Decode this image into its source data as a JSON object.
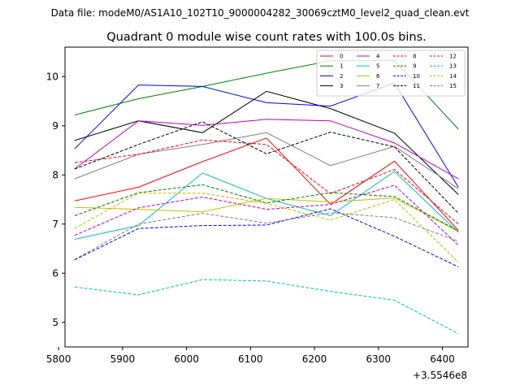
{
  "chart_data": {
    "type": "line",
    "suptitle": "Data file: modeM0/AS1A10_102T10_9000004282_30069cztM0_level2_quad_clean.evt",
    "title": "Quadrant 0 module wise count rates with 100.0s bins.",
    "xlabel": "",
    "ylabel": "",
    "x_offset_label": "+3.5546e8",
    "xlim": [
      5810,
      6440
    ],
    "ylim": [
      4.5,
      10.6
    ],
    "xticks": [
      5800,
      5900,
      6000,
      6100,
      6200,
      6300,
      6400
    ],
    "yticks": [
      5,
      6,
      7,
      8,
      9,
      10
    ],
    "x": [
      5825,
      5925,
      6025,
      6125,
      6225,
      6325,
      6425
    ],
    "legend_position": "top-right",
    "series": [
      {
        "name": "0",
        "color": "#ff0000",
        "dashed": false,
        "values": [
          7.47,
          7.75,
          8.27,
          8.75,
          7.4,
          8.28,
          6.87
        ]
      },
      {
        "name": "1",
        "color": "#008000",
        "dashed": false,
        "values": [
          9.22,
          9.55,
          9.8,
          10.07,
          10.32,
          10.33,
          8.93
        ]
      },
      {
        "name": "2",
        "color": "#0000ff",
        "dashed": false,
        "values": [
          8.53,
          9.83,
          9.8,
          9.47,
          9.4,
          9.87,
          7.75
        ]
      },
      {
        "name": "3",
        "color": "#000000",
        "dashed": false,
        "values": [
          8.7,
          9.1,
          8.86,
          9.7,
          9.35,
          8.85,
          7.6
        ]
      },
      {
        "name": "4",
        "color": "#bf00bf",
        "dashed": false,
        "values": [
          8.12,
          9.1,
          9.01,
          9.13,
          9.1,
          8.65,
          7.92
        ]
      },
      {
        "name": "5",
        "color": "#00bfbf",
        "dashed": false,
        "values": [
          6.69,
          6.97,
          8.04,
          7.52,
          7.17,
          8.07,
          6.83
        ]
      },
      {
        "name": "6",
        "color": "#bfbf00",
        "dashed": false,
        "values": [
          7.34,
          7.3,
          7.25,
          7.52,
          7.45,
          7.53,
          6.85
        ]
      },
      {
        "name": "7",
        "color": "#808080",
        "dashed": false,
        "values": [
          7.92,
          8.42,
          8.62,
          8.86,
          8.19,
          8.58,
          7.72
        ]
      },
      {
        "name": "8",
        "color": "#ff0000",
        "dashed": true,
        "values": [
          8.25,
          8.42,
          8.71,
          8.62,
          7.62,
          8.11,
          7.0
        ]
      },
      {
        "name": "9",
        "color": "#008000",
        "dashed": true,
        "values": [
          7.17,
          7.64,
          7.8,
          7.43,
          7.64,
          7.56,
          6.86
        ]
      },
      {
        "name": "10",
        "color": "#0000ff",
        "dashed": true,
        "values": [
          6.27,
          6.91,
          6.97,
          6.98,
          7.31,
          6.75,
          6.13
        ]
      },
      {
        "name": "11",
        "color": "#000000",
        "dashed": true,
        "values": [
          8.12,
          8.62,
          9.08,
          8.43,
          8.87,
          8.57,
          7.22
        ]
      },
      {
        "name": "12",
        "color": "#bf00bf",
        "dashed": true,
        "values": [
          6.77,
          7.33,
          7.55,
          7.3,
          7.4,
          7.79,
          6.57
        ]
      },
      {
        "name": "13",
        "color": "#00bfbf",
        "dashed": true,
        "values": [
          5.72,
          5.56,
          5.87,
          5.84,
          5.63,
          5.45,
          4.77
        ]
      },
      {
        "name": "14",
        "color": "#bfbf00",
        "dashed": true,
        "values": [
          6.91,
          7.63,
          7.63,
          7.42,
          7.08,
          7.5,
          6.22
        ]
      },
      {
        "name": "15",
        "color": "#808080",
        "dashed": true,
        "values": [
          6.28,
          7.0,
          7.22,
          7.02,
          7.23,
          7.13,
          6.65
        ]
      }
    ]
  }
}
